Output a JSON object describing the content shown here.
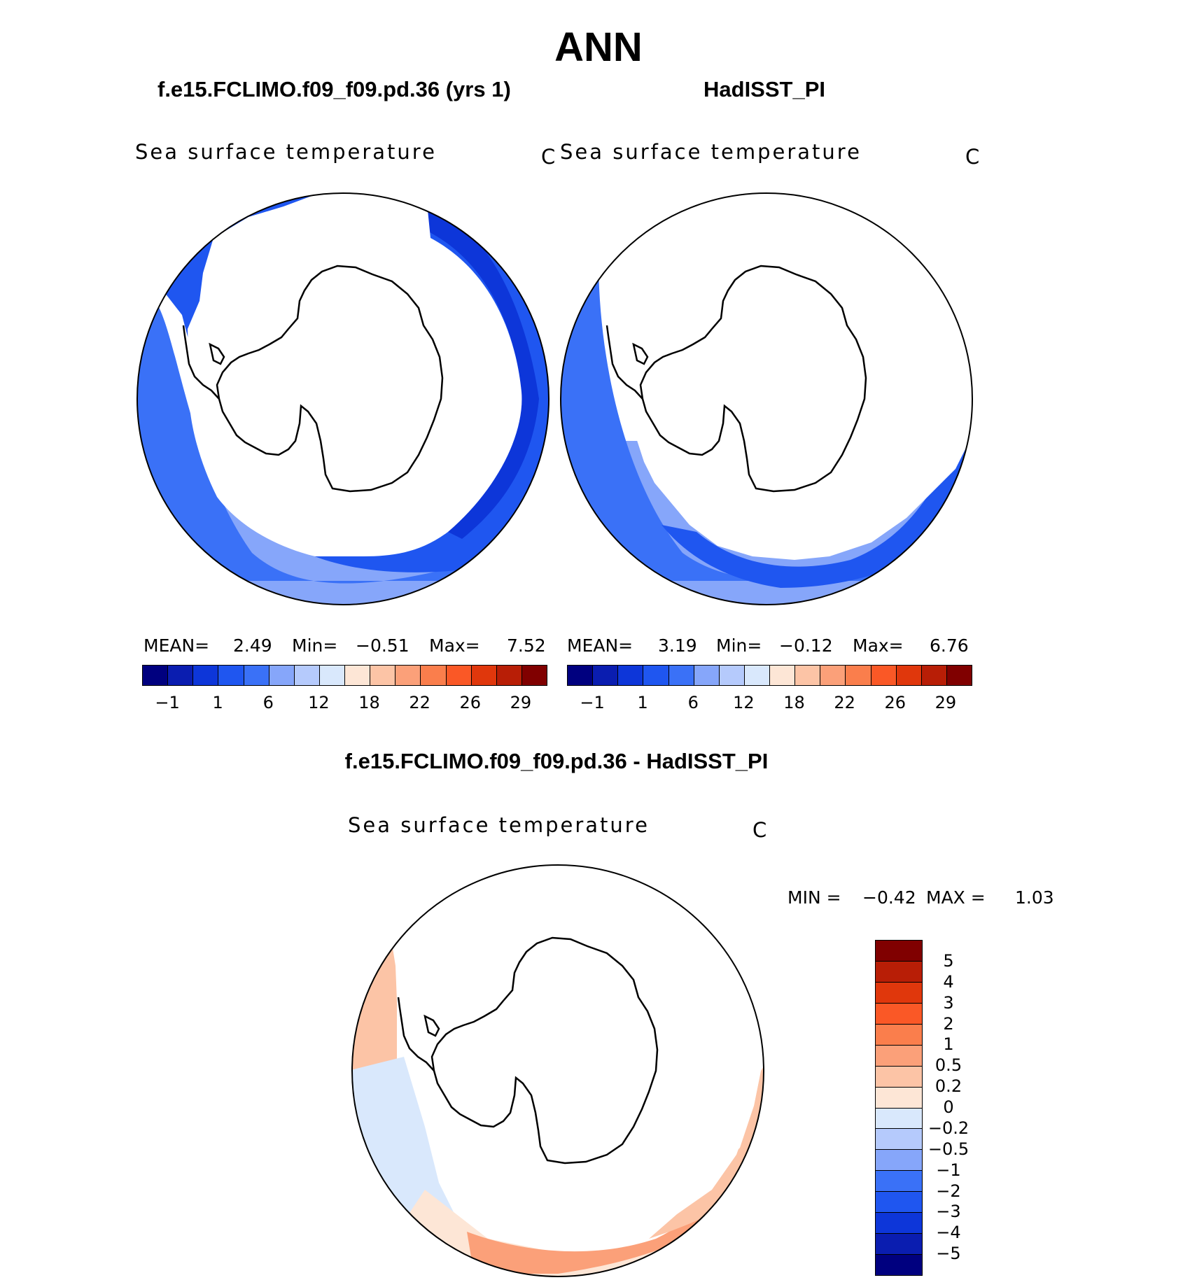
{
  "figure": {
    "title": "ANN"
  },
  "panels": [
    {
      "title": "f.e15.FCLIMO.f09_f09.pd.36 (yrs 1)",
      "variable": "Sea surface temperature",
      "units": "C",
      "stats": {
        "mean_label": "MEAN=",
        "mean": "2.49",
        "min_label": "Min=",
        "min": "−0.51",
        "max_label": "Max=",
        "max": "7.52"
      }
    },
    {
      "title": "HadISST_PI",
      "variable": "Sea surface temperature",
      "units": "C",
      "stats": {
        "mean_label": "MEAN=",
        "mean": "3.19",
        "min_label": "Min=",
        "min": "−0.12",
        "max_label": "Max=",
        "max": "6.76"
      }
    },
    {
      "title": "f.e15.FCLIMO.f09_f09.pd.36 - HadISST_PI",
      "variable": "Sea surface temperature",
      "units": "C",
      "stats": {
        "min_label": "MIN =",
        "min": "−0.42",
        "max_label": "MAX =",
        "max": "1.03"
      }
    }
  ],
  "colorbar_abs": {
    "colors": [
      "#00007f",
      "#0a1db0",
      "#0d36d9",
      "#1f56f0",
      "#3a71f7",
      "#86a6fa",
      "#b5cafc",
      "#d9e8fc",
      "#fde6d6",
      "#fcc4a6",
      "#fba079",
      "#fa7e4c",
      "#fa5826",
      "#e0370c",
      "#b81e06",
      "#800000"
    ],
    "tick_labels": [
      "−1",
      "1",
      "6",
      "12",
      "18",
      "22",
      "26",
      "29"
    ]
  },
  "colorbar_diff": {
    "colors": [
      "#800000",
      "#b81e06",
      "#e0370c",
      "#fa5826",
      "#fa7e4c",
      "#fba079",
      "#fcc4a6",
      "#fde6d6",
      "#d9e8fc",
      "#b5cafc",
      "#86a6fa",
      "#3a71f7",
      "#1f56f0",
      "#0d36d9",
      "#0a1db0",
      "#00007f"
    ],
    "tick_labels": [
      "5",
      "4",
      "3",
      "2",
      "1",
      "0.5",
      "0.2",
      "0",
      "−0.2",
      "−0.5",
      "−1",
      "−2",
      "−3",
      "−4",
      "−5"
    ]
  },
  "maps": {
    "ocean_dark": "#1f56f0",
    "ocean_mid": "#3a71f7",
    "ocean_light": "#86a6fa",
    "ocean_pale": "#b5cafc",
    "diff_peach": "#fcc4a6",
    "diff_cream": "#fde6d6",
    "diff_orange": "#fba079",
    "diff_blue": "#d9e8fc"
  }
}
